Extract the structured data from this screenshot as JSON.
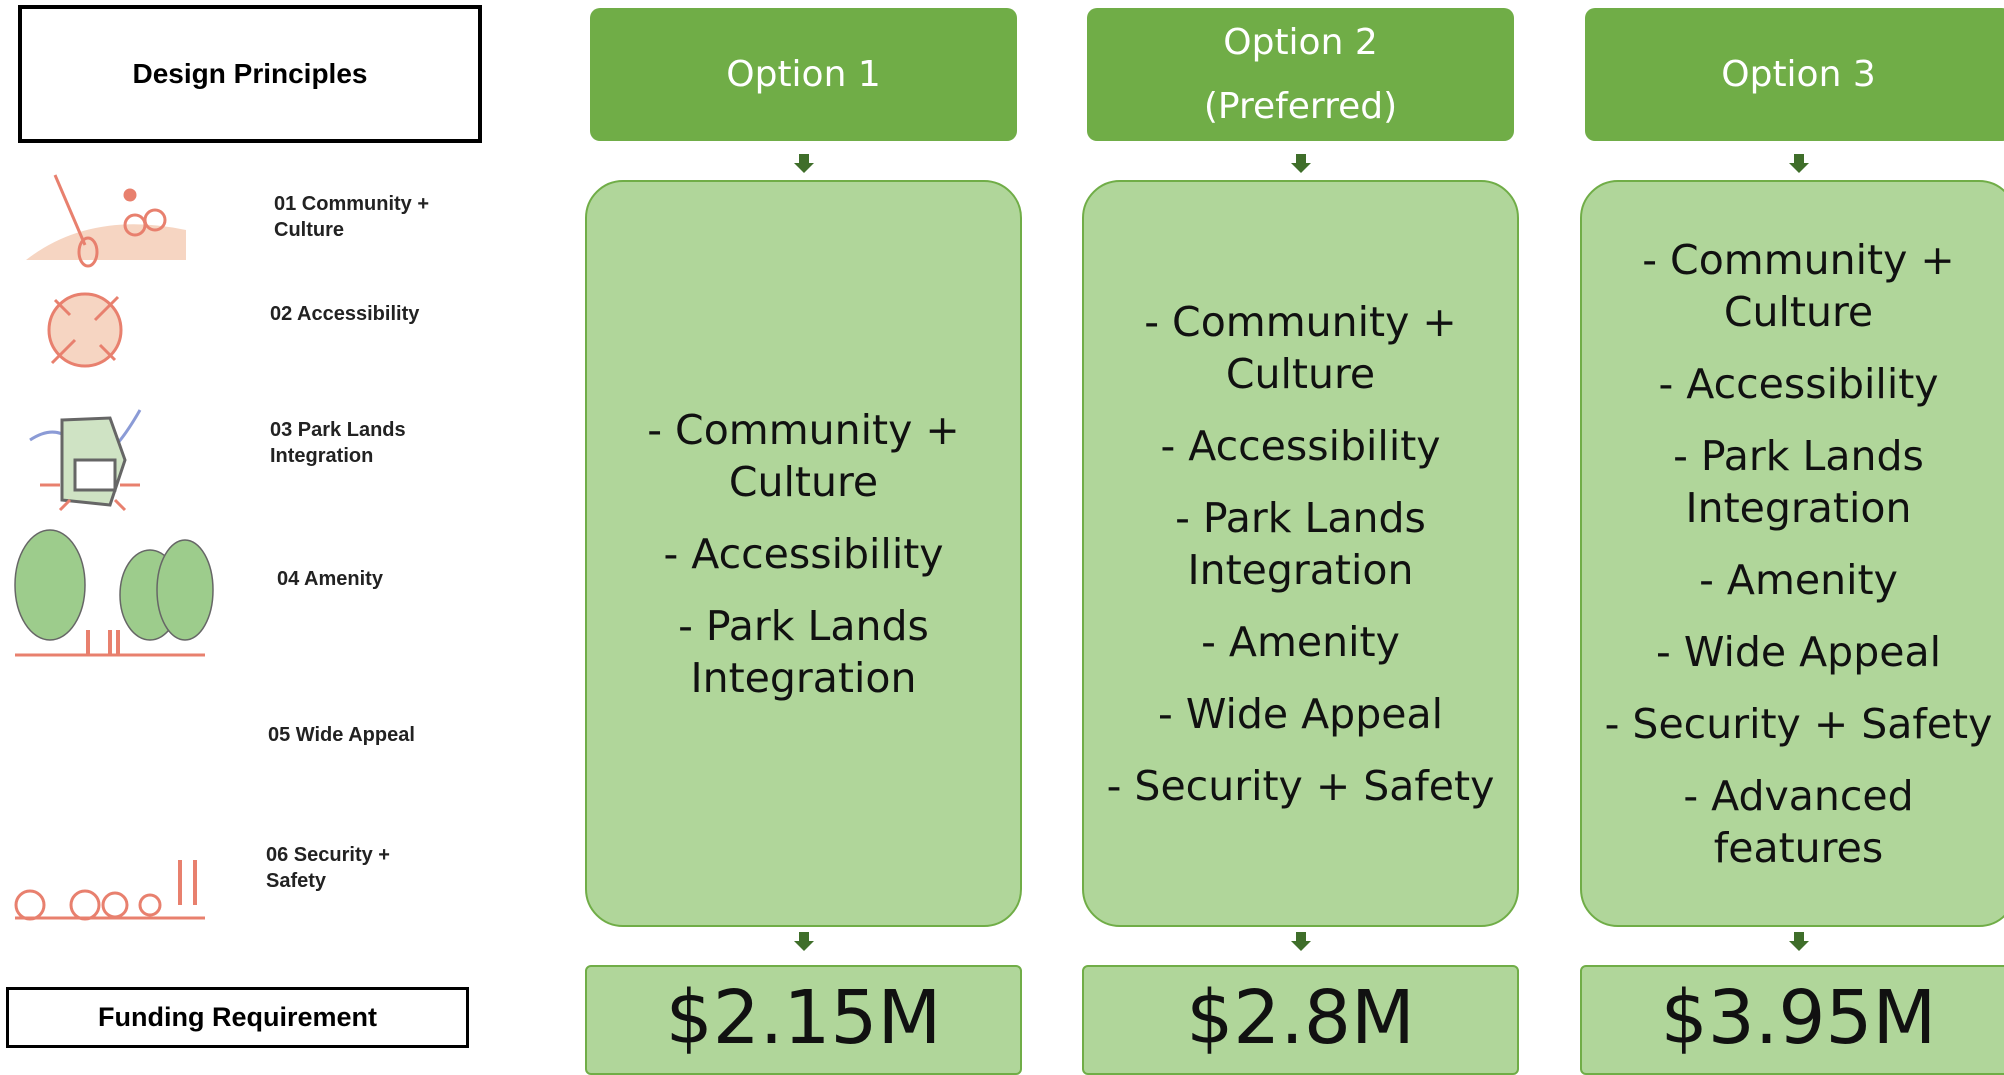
{
  "principles_header": "Design Principles",
  "principles": [
    "01 Community + Culture",
    "02 Accessibility",
    "03 Park Lands Integration",
    "04 Amenity",
    "05 Wide Appeal",
    "06 Security + Safety"
  ],
  "funding_header": "Funding Requirement",
  "options": [
    {
      "title": "Option 1",
      "items": [
        "- Community + Culture",
        "- Accessibility",
        "- Park Lands Integration"
      ],
      "funding": "$2.15M"
    },
    {
      "title": "Option 2",
      "subtitle": "(Preferred)",
      "items": [
        "- Community + Culture",
        "- Accessibility",
        "- Park Lands Integration",
        "- Amenity",
        "- Wide Appeal",
        "- Security + Safety"
      ],
      "funding": "$2.8M"
    },
    {
      "title": "Option 3",
      "items": [
        "- Community + Culture",
        "- Accessibility",
        "- Park Lands Integration",
        "- Amenity",
        "- Wide Appeal",
        "- Security + Safety",
        "- Advanced features"
      ],
      "funding": "$3.95M"
    }
  ]
}
